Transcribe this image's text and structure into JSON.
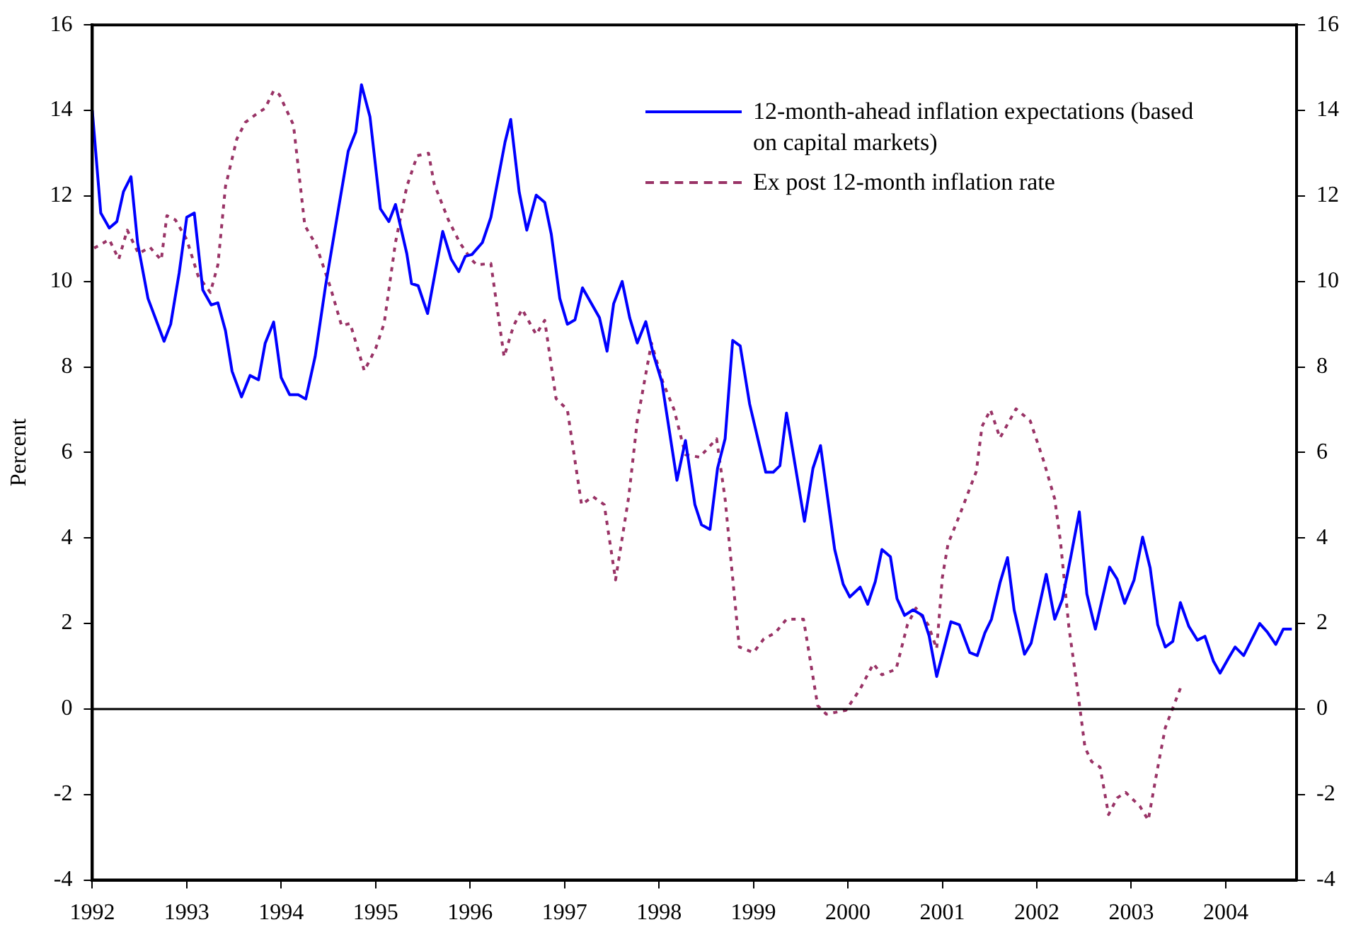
{
  "chart_data": {
    "type": "line",
    "ylabel": "Percent",
    "xlim": [
      1992,
      2004.75
    ],
    "xticks": [
      1992,
      1993,
      1994,
      1995,
      1996,
      1997,
      1998,
      1999,
      2000,
      2001,
      2002,
      2003,
      2004
    ],
    "ylim": [
      -4,
      16
    ],
    "yticks": [
      -4,
      -2,
      0,
      2,
      4,
      6,
      8,
      10,
      12,
      14,
      16
    ],
    "y2lim": [
      -4,
      16
    ],
    "y2ticks": [
      -4,
      -2,
      0,
      2,
      4,
      6,
      8,
      10,
      12,
      14,
      16
    ],
    "grid": false,
    "legend": "top right",
    "marker": "none",
    "ref_lines": [
      {
        "axis": "y",
        "value": 0,
        "color": "#000000"
      }
    ],
    "series": [
      {
        "name": "12-month-ahead inflation expectations (based on capital markets)",
        "color": "#0000ff",
        "line_style": "solid",
        "x": [
          1992.0,
          1992.09,
          1992.18,
          1992.26,
          1992.33,
          1992.41,
          1992.48,
          1992.59,
          1992.76,
          1992.83,
          1992.92,
          1993.0,
          1993.08,
          1993.17,
          1993.26,
          1993.33,
          1993.41,
          1993.48,
          1993.58,
          1993.67,
          1993.76,
          1993.83,
          1993.92,
          1994.0,
          1994.09,
          1994.18,
          1994.26,
          1994.36,
          1994.47,
          1994.61,
          1994.71,
          1994.79,
          1994.85,
          1994.94,
          1995.05,
          1995.14,
          1995.21,
          1995.33,
          1995.38,
          1995.45,
          1995.55,
          1995.71,
          1995.8,
          1995.88,
          1995.95,
          1996.02,
          1996.13,
          1996.22,
          1996.37,
          1996.43,
          1996.52,
          1996.6,
          1996.7,
          1996.79,
          1996.86,
          1996.95,
          1997.03,
          1997.11,
          1997.19,
          1997.37,
          1997.45,
          1997.52,
          1997.61,
          1997.69,
          1997.77,
          1997.86,
          1997.94,
          1998.03,
          1998.19,
          1998.28,
          1998.38,
          1998.45,
          1998.54,
          1998.62,
          1998.7,
          1998.78,
          1998.86,
          1998.96,
          1999.13,
          1999.21,
          1999.28,
          1999.35,
          1999.54,
          1999.63,
          1999.71,
          1999.86,
          1999.95,
          2000.02,
          2000.13,
          2000.21,
          2000.29,
          2000.36,
          2000.45,
          2000.52,
          2000.6,
          2000.69,
          2000.79,
          2000.86,
          2000.94,
          2001.09,
          2001.18,
          2001.29,
          2001.37,
          2001.45,
          2001.52,
          2001.61,
          2001.69,
          2001.76,
          2001.87,
          2001.94,
          2002.1,
          2002.19,
          2002.27,
          2002.36,
          2002.45,
          2002.53,
          2002.62,
          2002.77,
          2002.85,
          2002.93,
          2003.03,
          2003.12,
          2003.2,
          2003.28,
          2003.36,
          2003.44,
          2003.52,
          2003.61,
          2003.7,
          2003.78,
          2003.87,
          2003.94,
          2004.03,
          2004.1,
          2004.19,
          2004.36,
          2004.44,
          2004.53,
          2004.61,
          2004.7
        ],
        "values": [
          14.0,
          11.6,
          11.25,
          11.4,
          12.1,
          12.45,
          10.9,
          9.6,
          8.6,
          9.0,
          10.2,
          11.5,
          11.6,
          9.8,
          9.45,
          9.5,
          8.85,
          7.9,
          7.3,
          7.8,
          7.7,
          8.55,
          9.05,
          7.75,
          7.35,
          7.35,
          7.25,
          8.25,
          9.9,
          11.75,
          13.05,
          13.5,
          14.6,
          13.85,
          11.7,
          11.4,
          11.8,
          10.65,
          9.95,
          9.9,
          9.25,
          11.17,
          10.52,
          10.23,
          10.59,
          10.63,
          10.91,
          11.5,
          13.26,
          13.79,
          12.09,
          11.2,
          12.02,
          11.85,
          11.1,
          9.6,
          9.0,
          9.1,
          9.85,
          9.15,
          8.37,
          9.48,
          10.0,
          9.15,
          8.56,
          9.06,
          8.3,
          7.65,
          5.35,
          6.28,
          4.78,
          4.31,
          4.2,
          5.63,
          6.32,
          8.62,
          8.49,
          7.13,
          5.54,
          5.54,
          5.69,
          6.92,
          4.39,
          5.63,
          6.16,
          3.73,
          2.92,
          2.62,
          2.85,
          2.45,
          2.98,
          3.73,
          3.56,
          2.58,
          2.19,
          2.32,
          2.19,
          1.71,
          0.76,
          2.04,
          1.97,
          1.32,
          1.25,
          1.78,
          2.1,
          2.95,
          3.54,
          2.32,
          1.28,
          1.54,
          3.15,
          2.1,
          2.56,
          3.56,
          4.61,
          2.69,
          1.87,
          3.32,
          3.04,
          2.47,
          3.02,
          4.02,
          3.3,
          1.97,
          1.45,
          1.58,
          2.49,
          1.93,
          1.61,
          1.7,
          1.12,
          0.84,
          1.19,
          1.45,
          1.25,
          2.0,
          1.8,
          1.51,
          1.87,
          1.87
        ]
      },
      {
        "name": "Ex post 12-month inflation rate",
        "color": "#993366",
        "line_style": "dotted",
        "x": [
          1992.02,
          1992.18,
          1992.28,
          1992.37,
          1992.49,
          1992.61,
          1992.73,
          1992.79,
          1992.88,
          1993.0,
          1993.12,
          1993.25,
          1993.33,
          1993.41,
          1993.53,
          1993.62,
          1993.74,
          1993.83,
          1993.92,
          1993.98,
          1994.13,
          1994.25,
          1994.37,
          1994.52,
          1994.64,
          1994.73,
          1994.88,
          1995.0,
          1995.09,
          1995.21,
          1995.33,
          1995.44,
          1995.56,
          1995.62,
          1995.77,
          1995.89,
          1996.01,
          1996.07,
          1996.22,
          1996.36,
          1996.46,
          1996.55,
          1996.7,
          1996.79,
          1996.91,
          1997.03,
          1997.18,
          1997.3,
          1997.42,
          1997.54,
          1997.68,
          1997.77,
          1997.92,
          1998.04,
          1998.16,
          1998.28,
          1998.43,
          1998.61,
          1998.7,
          1998.85,
          1999.0,
          1999.11,
          1999.23,
          1999.35,
          1999.53,
          1999.68,
          1999.77,
          1999.98,
          2000.13,
          2000.27,
          2000.36,
          2000.51,
          2000.63,
          2000.72,
          2000.85,
          2000.94,
          2001.0,
          2001.06,
          2001.18,
          2001.36,
          2001.42,
          2001.51,
          2001.61,
          2001.78,
          2001.93,
          2002.07,
          2002.19,
          2002.25,
          2002.34,
          2002.43,
          2002.51,
          2002.58,
          2002.67,
          2002.76,
          2002.85,
          2002.94,
          2003.09,
          2003.18,
          2003.27,
          2003.36,
          2003.54
        ],
        "values": [
          10.78,
          10.98,
          10.52,
          11.2,
          10.65,
          10.8,
          10.5,
          11.54,
          11.44,
          10.98,
          10.13,
          9.74,
          10.39,
          12.22,
          13.33,
          13.72,
          13.92,
          14.05,
          14.46,
          14.37,
          13.66,
          11.31,
          10.85,
          9.87,
          8.96,
          9.02,
          7.91,
          8.43,
          9.02,
          10.91,
          12.22,
          12.94,
          13.0,
          12.28,
          11.44,
          10.91,
          10.52,
          10.39,
          10.42,
          8.24,
          8.96,
          9.35,
          8.76,
          9.09,
          7.26,
          7.0,
          4.78,
          4.97,
          4.78,
          3.02,
          4.97,
          6.74,
          8.56,
          7.65,
          7.0,
          5.95,
          5.89,
          6.32,
          4.91,
          1.45,
          1.32,
          1.64,
          1.78,
          2.1,
          2.1,
          0.08,
          -0.12,
          -0.03,
          0.47,
          1.06,
          0.8,
          0.93,
          1.97,
          2.36,
          1.97,
          1.41,
          3.08,
          3.86,
          4.52,
          5.56,
          6.61,
          7.0,
          6.34,
          7.02,
          6.74,
          5.82,
          4.91,
          3.93,
          1.91,
          0.47,
          -0.9,
          -1.23,
          -1.36,
          -2.47,
          -2.08,
          -1.95,
          -2.27,
          -2.6,
          -1.49,
          -0.44,
          0.6
        ]
      }
    ]
  }
}
